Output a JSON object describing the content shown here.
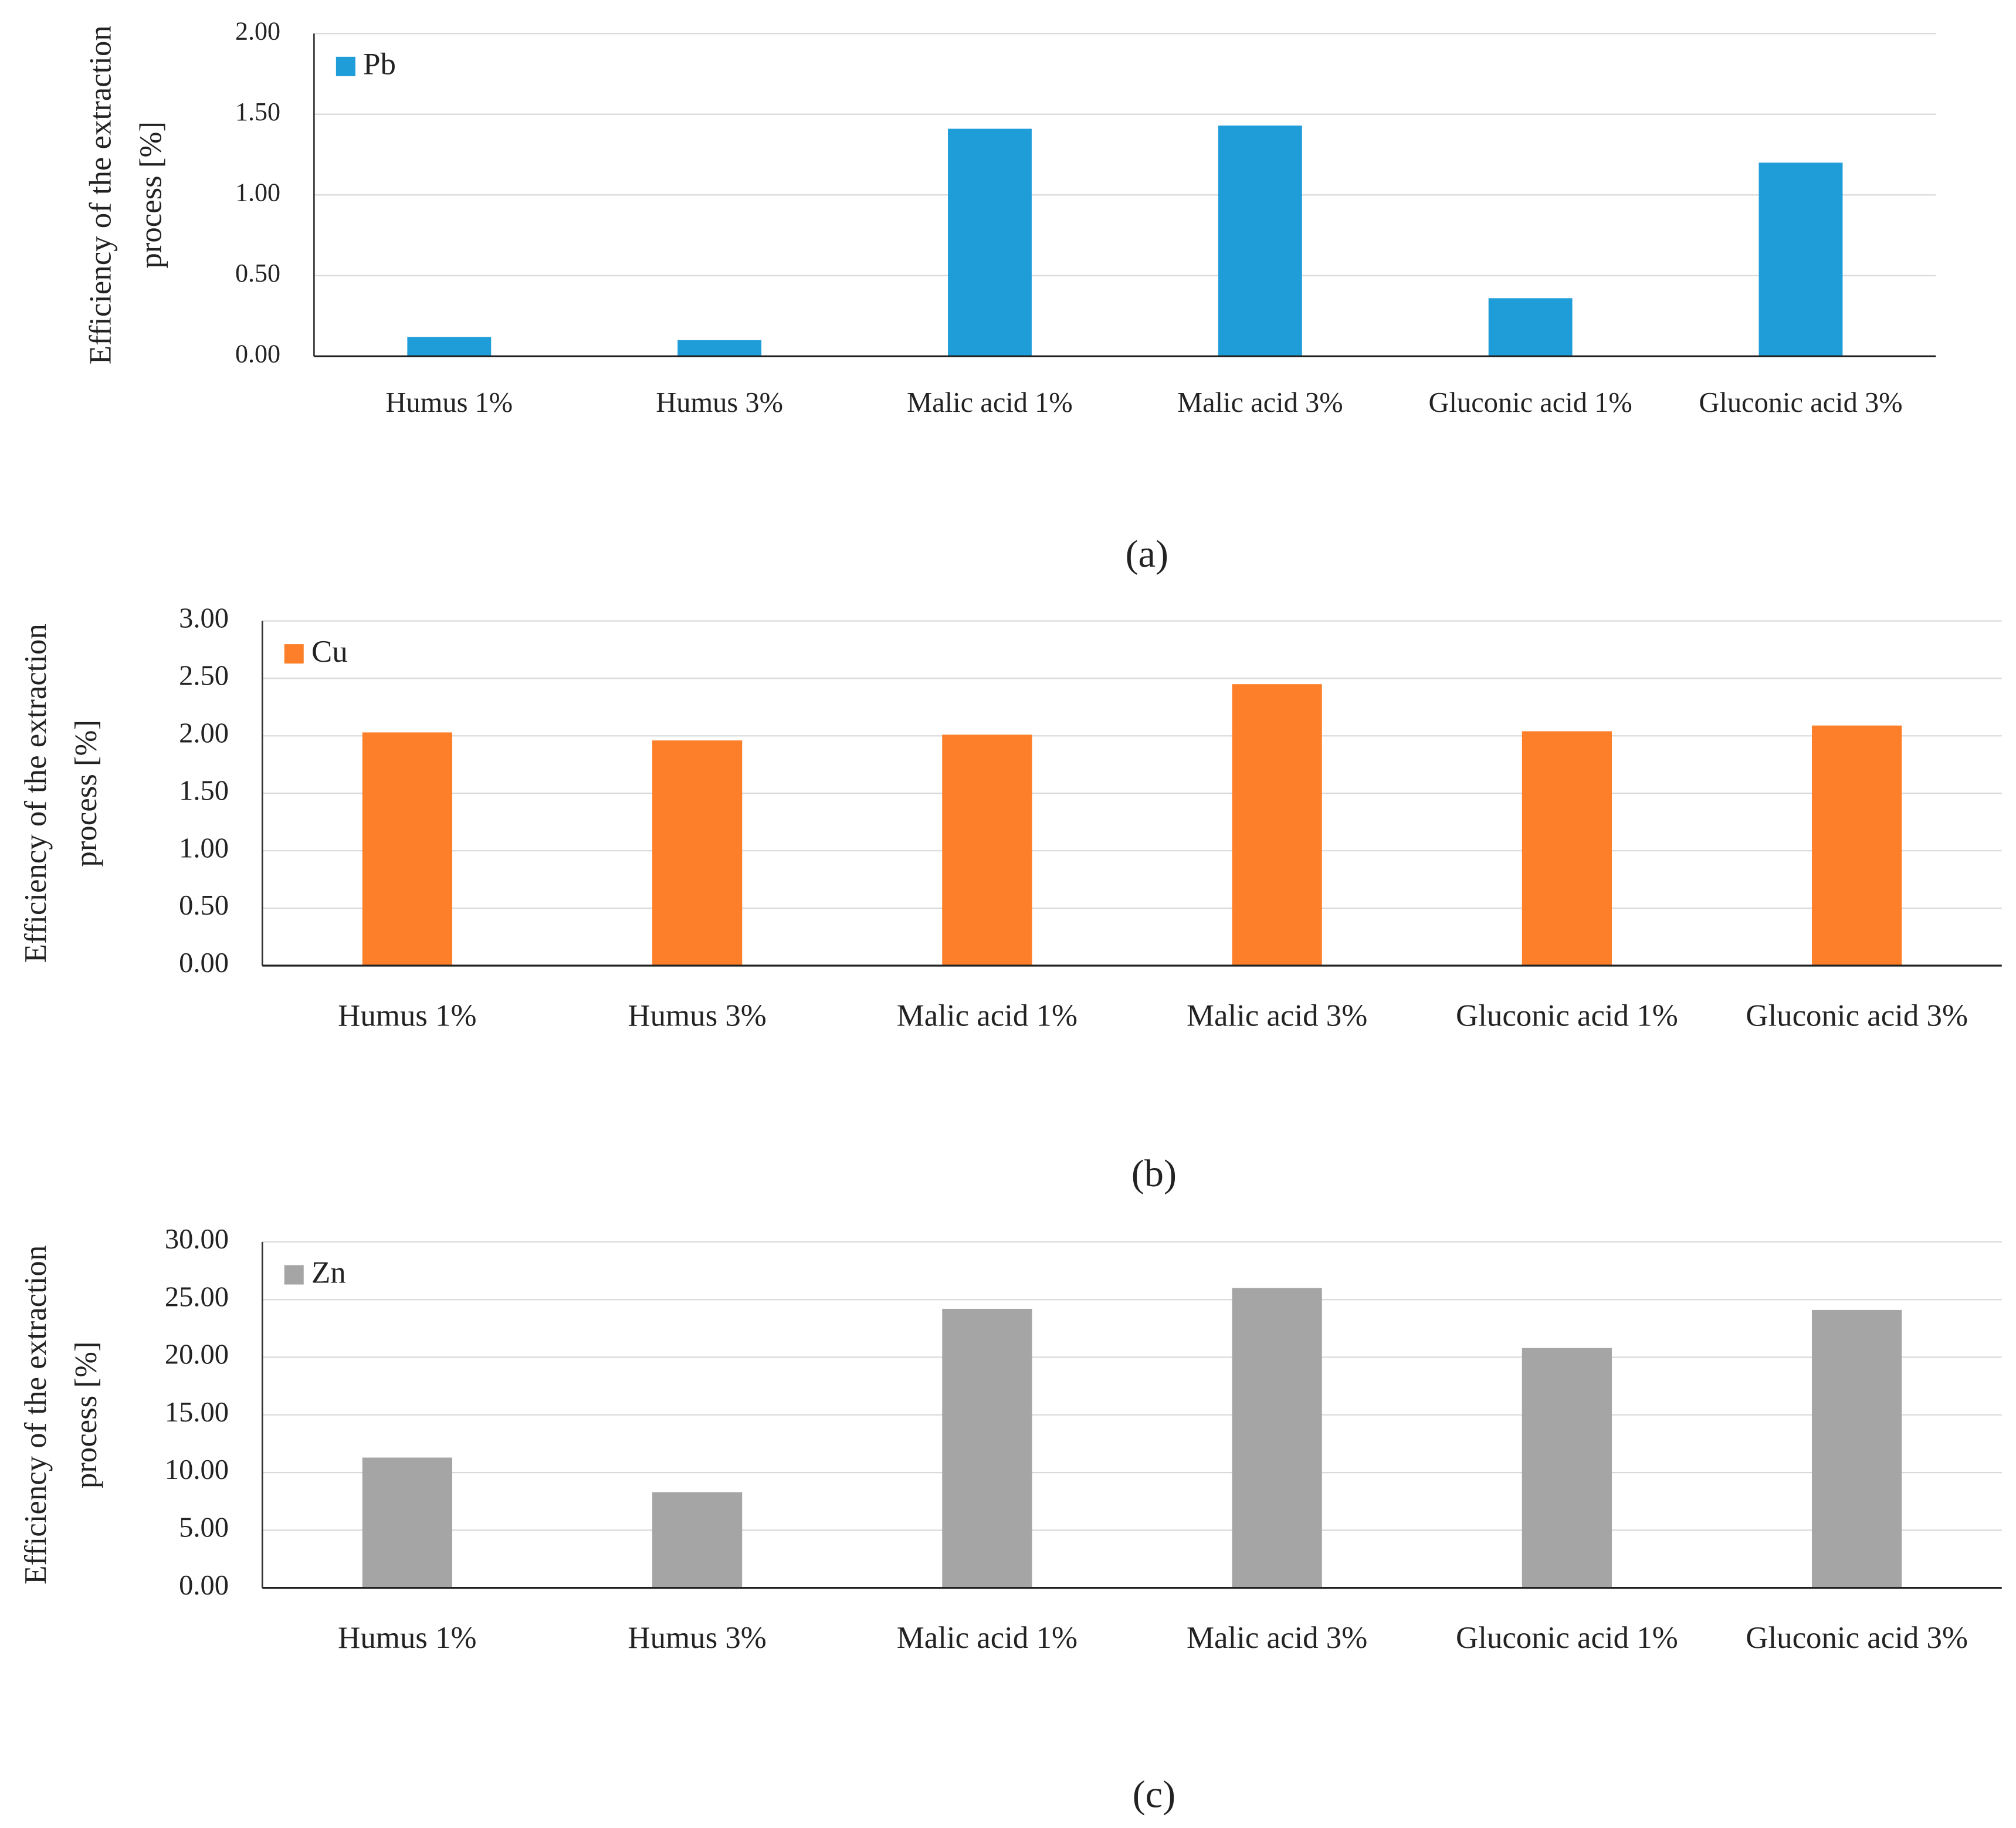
{
  "chart_data": [
    {
      "type": "bar",
      "caption": "(a)",
      "ylabel": [
        "Efficiency  of the extraction",
        "process [%]"
      ],
      "categories": [
        "Humus 1%",
        "Humus 3%",
        "Malic acid 1%",
        "Malic acid 3%",
        "Gluconic acid 1%",
        "Gluconic acid 3%"
      ],
      "series": [
        {
          "name": "Pb",
          "color": "#1f9dd9",
          "values": [
            0.12,
            0.1,
            1.41,
            1.43,
            0.36,
            1.2
          ]
        }
      ],
      "ylim": [
        0,
        2
      ],
      "yticks": [
        {
          "value": 0,
          "label": "0.00"
        },
        {
          "value": 0.5,
          "label": "0.50"
        },
        {
          "value": 1,
          "label": "1.00"
        },
        {
          "value": 1.5,
          "label": "1.50"
        },
        {
          "value": 2,
          "label": "2.00"
        }
      ],
      "grid": true,
      "legend": "top-left"
    },
    {
      "type": "bar",
      "caption": "(b)",
      "ylabel": [
        "Efficiency  of the extraction",
        "process [%]"
      ],
      "categories": [
        "Humus 1%",
        "Humus 3%",
        "Malic acid 1%",
        "Malic acid 3%",
        "Gluconic acid 1%",
        "Gluconic acid 3%"
      ],
      "series": [
        {
          "name": "Cu",
          "color": "#fe7f2a",
          "values": [
            2.03,
            1.96,
            2.01,
            2.45,
            2.04,
            2.09
          ]
        }
      ],
      "ylim": [
        0,
        3
      ],
      "yticks": [
        {
          "value": 0,
          "label": "0.00"
        },
        {
          "value": 0.5,
          "label": "0.50"
        },
        {
          "value": 1,
          "label": "1.00"
        },
        {
          "value": 1.5,
          "label": "1.50"
        },
        {
          "value": 2,
          "label": "2.00"
        },
        {
          "value": 2.5,
          "label": "2.50"
        },
        {
          "value": 3,
          "label": "3.00"
        }
      ],
      "grid": true,
      "legend": "top-left"
    },
    {
      "type": "bar",
      "caption": "(c)",
      "ylabel": [
        "Efficiency  of the extraction",
        "process [%]"
      ],
      "categories": [
        "Humus 1%",
        "Humus 3%",
        "Malic acid 1%",
        "Malic acid 3%",
        "Gluconic acid 1%",
        "Gluconic acid 3%"
      ],
      "series": [
        {
          "name": "Zn",
          "color": "#a5a5a5",
          "values": [
            11.3,
            8.3,
            24.2,
            26.0,
            20.8,
            24.1
          ]
        }
      ],
      "ylim": [
        0,
        30
      ],
      "yticks": [
        {
          "value": 0,
          "label": "0.00"
        },
        {
          "value": 5,
          "label": "5.00"
        },
        {
          "value": 10,
          "label": "10.00"
        },
        {
          "value": 15,
          "label": "15.00"
        },
        {
          "value": 20,
          "label": "20.00"
        },
        {
          "value": 25,
          "label": "25.00"
        },
        {
          "value": 30,
          "label": "30.00"
        }
      ],
      "grid": true,
      "legend": "top-left"
    }
  ]
}
